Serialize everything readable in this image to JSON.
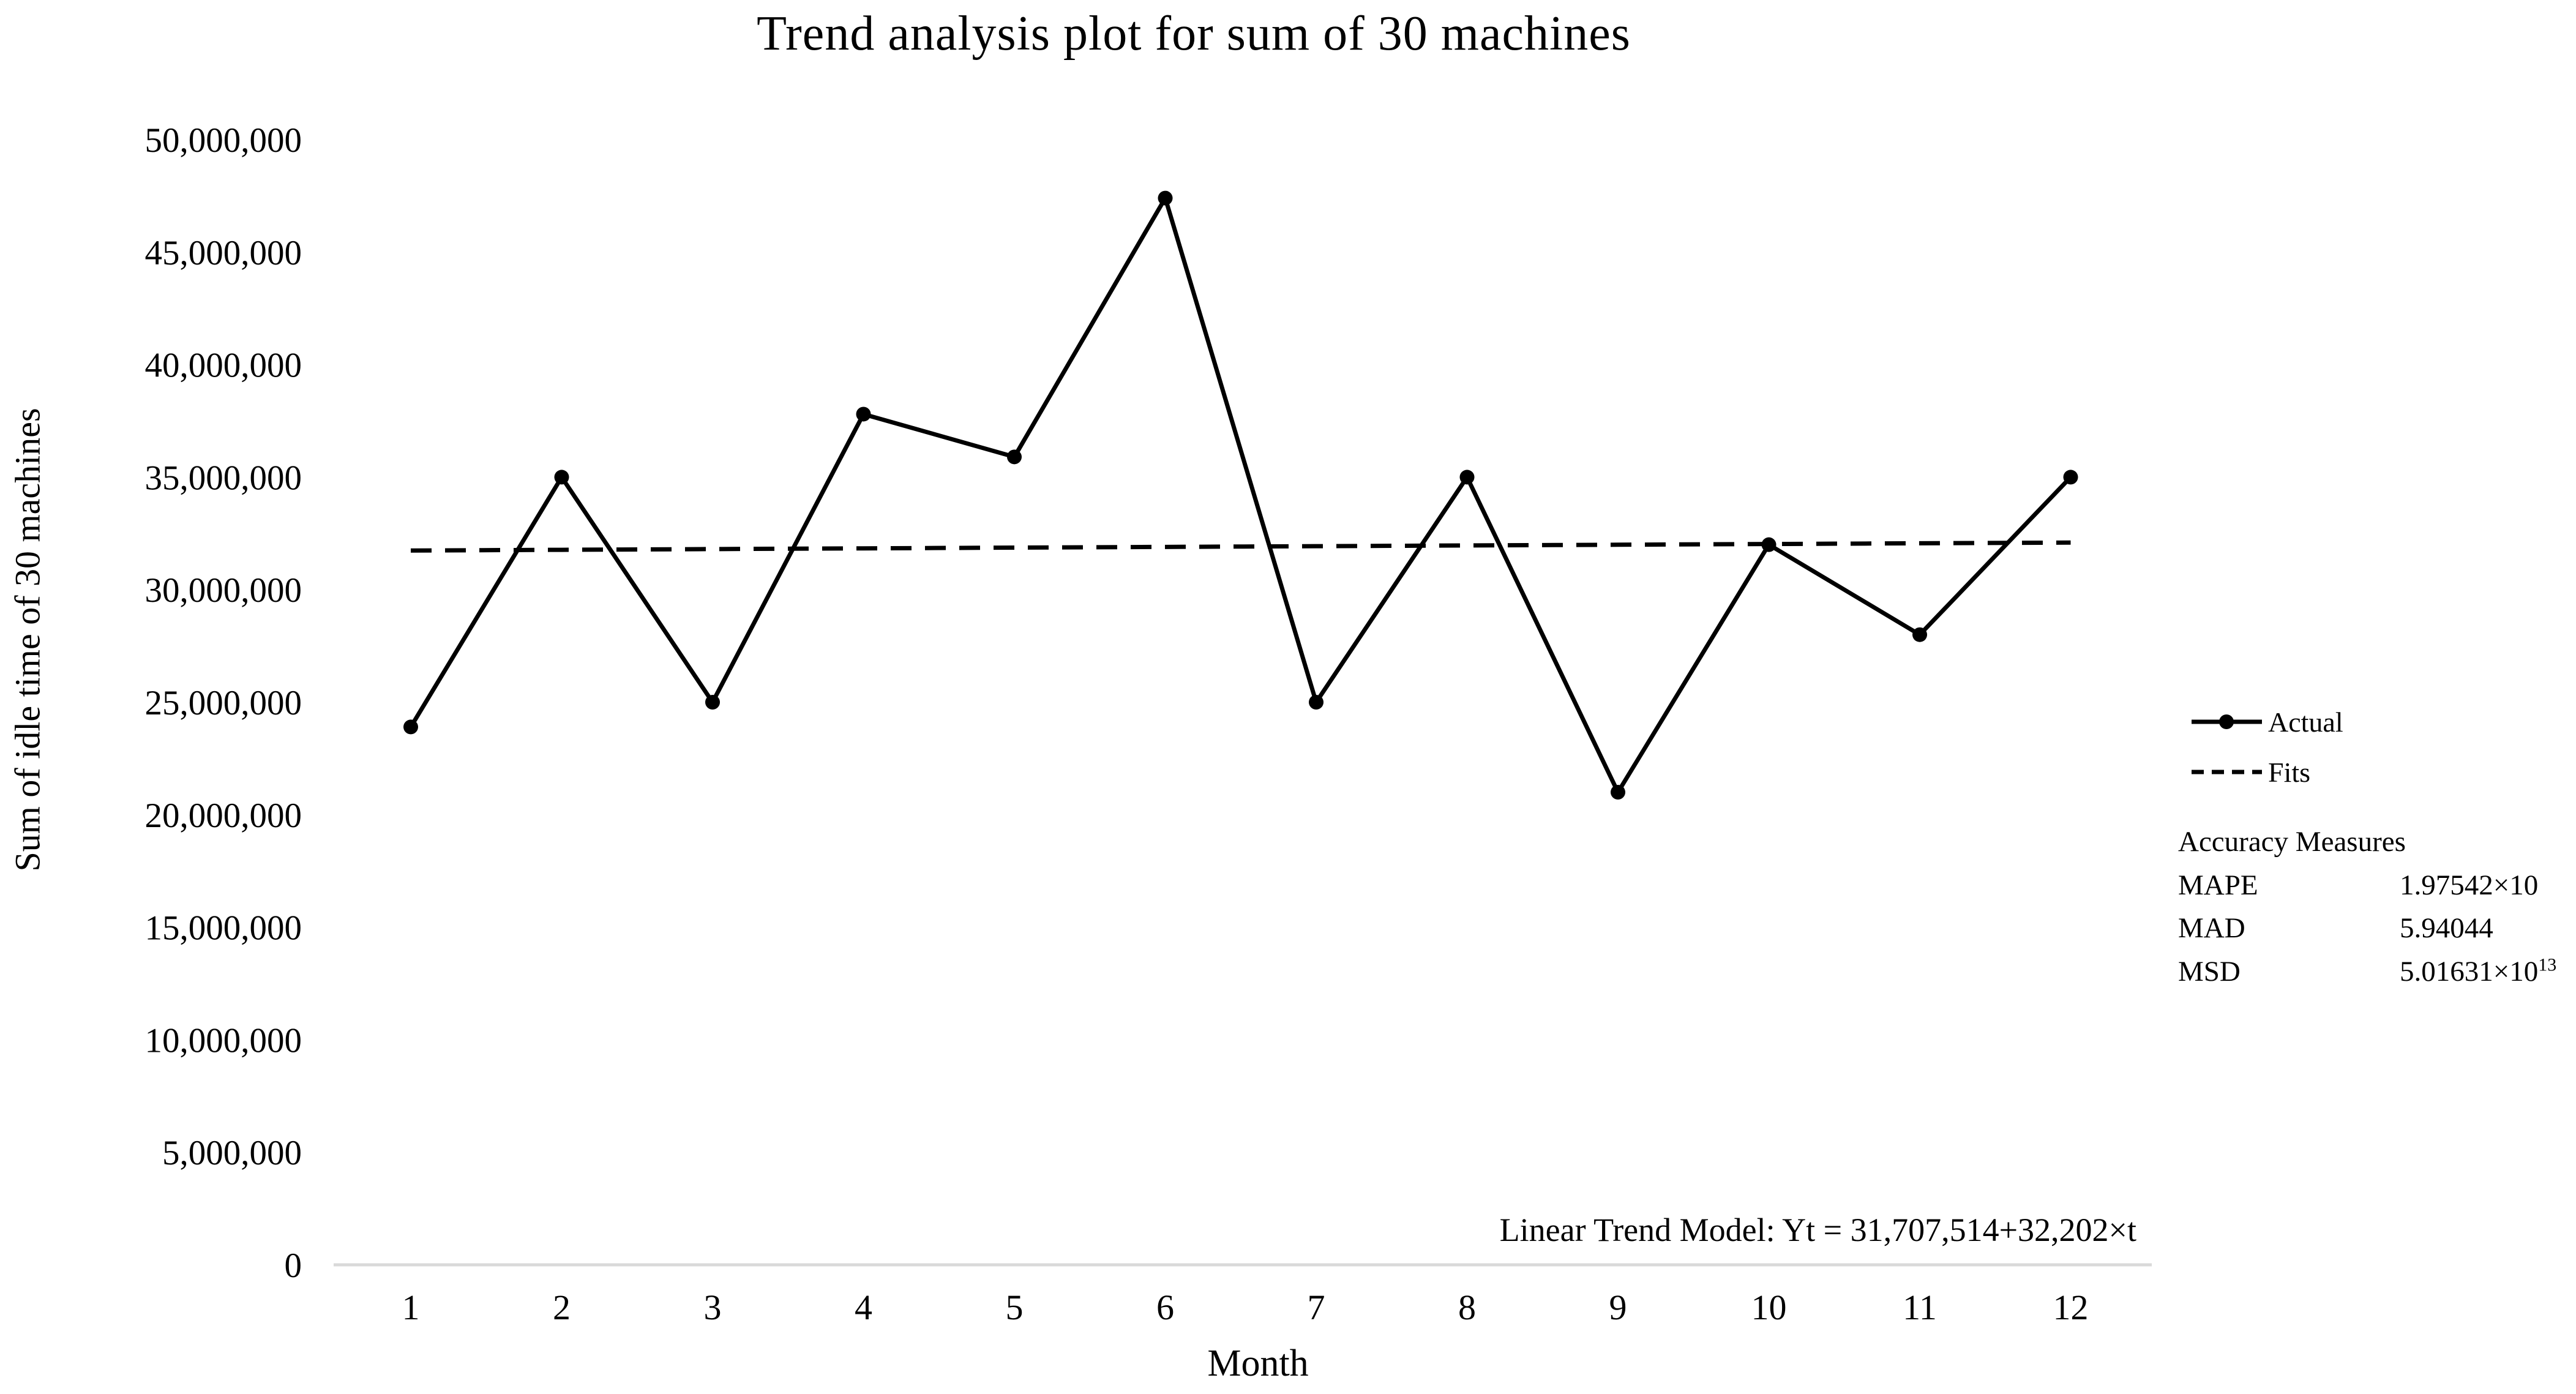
{
  "chart_data": {
    "type": "line",
    "title": "Trend analysis plot for sum of 30 machines",
    "xlabel": "Month",
    "ylabel": "Sum of idle time of 30 machines",
    "x": [
      1,
      2,
      3,
      4,
      5,
      6,
      7,
      8,
      9,
      10,
      11,
      12
    ],
    "series": [
      {
        "name": "Actual",
        "style": "solid",
        "marker": "circle",
        "color": "#000000",
        "values": [
          23900000,
          35000000,
          25000000,
          37800000,
          35900000,
          47400000,
          25000000,
          35000000,
          21000000,
          32000000,
          28000000,
          35000000
        ]
      },
      {
        "name": "Fits",
        "style": "dashed",
        "marker": "none",
        "color": "#000000",
        "values": [
          31739716,
          31771918,
          31804120,
          31836322,
          31868524,
          31900726,
          31932928,
          31965130,
          31997332,
          32029534,
          32061736,
          32093938
        ]
      }
    ],
    "ylim": [
      0,
      50000000
    ],
    "ytick_step": 5000000,
    "xlim": [
      1,
      12
    ],
    "grid": false,
    "legend_position": "right",
    "axis_color": "#d9d9d9",
    "line_color": "#000000",
    "model": {
      "intercept": 31707514,
      "slope": 32202
    }
  },
  "accuracy": {
    "title": "Accuracy Measures",
    "rows": [
      {
        "label": "MAPE",
        "value": "1.97542×10",
        "exp": ""
      },
      {
        "label": "MAD",
        "value": "5.94044",
        "exp": ""
      },
      {
        "label": "MSD",
        "value": "5.01631×10",
        "exp": "13"
      }
    ]
  },
  "annotation": {
    "model_label": "Linear Trend Model: Yt = 31,707,514+32,202×t"
  }
}
